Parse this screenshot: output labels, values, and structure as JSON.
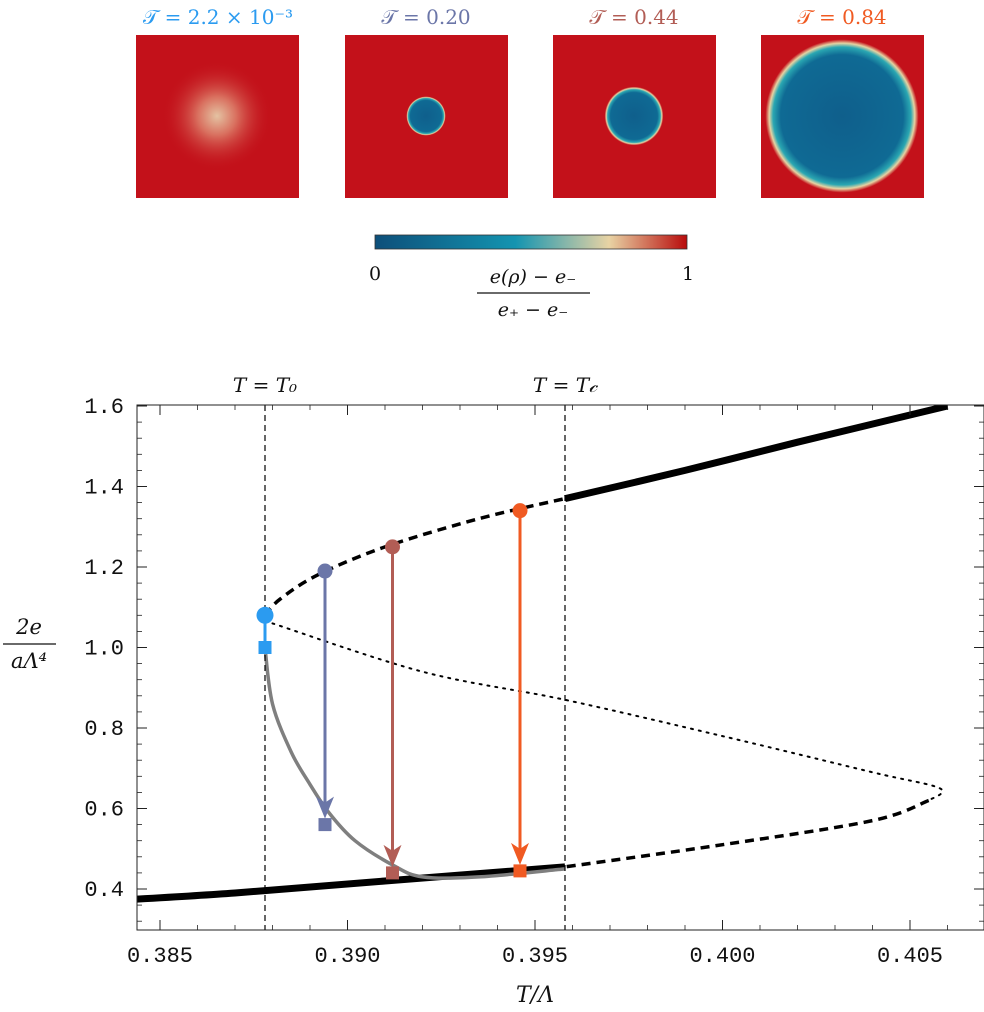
{
  "panels": [
    {
      "label": "𝒯 = 2.2 × 10⁻³",
      "color": "#2b9bf0"
    },
    {
      "label": "𝒯 = 0.20",
      "color": "#6b76a8"
    },
    {
      "label": "𝒯 = 0.44",
      "color": "#b25d55"
    },
    {
      "label": "𝒯 = 0.84",
      "color": "#f05a22"
    }
  ],
  "panel_bubble_fraction": [
    0.0,
    0.24,
    0.36,
    0.94
  ],
  "colorbar": {
    "min_label": "0",
    "max_label": "1",
    "numerator": "e(ρ) − e₋",
    "denominator": "e₊ − e₋"
  },
  "chart_data": {
    "type": "line",
    "xlabel": "T/Λ",
    "ylabel_numerator": "2e",
    "ylabel_denominator": "aΛ⁴",
    "xlim": [
      0.3835,
      0.408
    ],
    "ylim": [
      0.3,
      1.6
    ],
    "xticks": [
      "0.385",
      "0.390",
      "0.395",
      "0.400",
      "0.405"
    ],
    "yticks": [
      "0.4",
      "0.6",
      "0.8",
      "1.0",
      "1.2",
      "1.4",
      "1.6"
    ],
    "grid": false,
    "vlines": [
      {
        "x": 0.3878,
        "label": "T = T₀"
      },
      {
        "x": 0.3958,
        "label": "T = T𝒸"
      }
    ],
    "branches": {
      "hot_stable": {
        "x": [
          0.3958,
          0.399,
          0.402,
          0.406
        ],
        "y": [
          1.37,
          1.44,
          1.51,
          1.6
        ]
      },
      "hot_metastable": {
        "x": [
          0.3878,
          0.3882,
          0.3892,
          0.391,
          0.3935,
          0.3958
        ],
        "y": [
          1.08,
          1.12,
          1.18,
          1.25,
          1.32,
          1.37
        ]
      },
      "unstable": {
        "x": [
          0.388,
          0.392,
          0.3958,
          0.4,
          0.404,
          0.4058,
          0.4055
        ],
        "y": [
          1.06,
          0.94,
          0.87,
          0.78,
          0.69,
          0.65,
          0.62
        ]
      },
      "cold_metastable": {
        "x": [
          0.4055,
          0.404,
          0.4,
          0.3958
        ],
        "y": [
          0.62,
          0.57,
          0.51,
          0.455
        ]
      },
      "cold_stable": {
        "x": [
          0.3835,
          0.387,
          0.391,
          0.3958
        ],
        "y": [
          0.37,
          0.39,
          0.42,
          0.455
        ]
      },
      "gray_path": {
        "x": [
          0.3878,
          0.388,
          0.3885,
          0.389,
          0.3895,
          0.3902,
          0.3912,
          0.392,
          0.3935,
          0.3958
        ],
        "y": [
          1.0,
          0.86,
          0.74,
          0.66,
          0.59,
          0.52,
          0.46,
          0.43,
          0.43,
          0.45
        ]
      }
    },
    "transitions": [
      {
        "x": 0.3878,
        "y_start": 1.08,
        "y_end": 1.0,
        "color": "#2b9bf0"
      },
      {
        "x": 0.3894,
        "y_start": 1.19,
        "y_end": 0.56,
        "color": "#6b76a8"
      },
      {
        "x": 0.3912,
        "y_start": 1.25,
        "y_end": 0.44,
        "color": "#b25d55"
      },
      {
        "x": 0.3946,
        "y_start": 1.34,
        "y_end": 0.445,
        "color": "#f05a22"
      }
    ]
  }
}
